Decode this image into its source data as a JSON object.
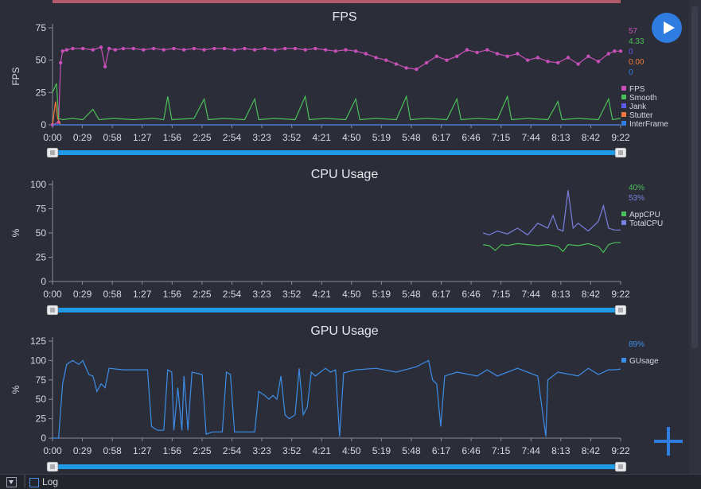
{
  "colors": {
    "background": "#2b2e38",
    "axis": "#8a8f9c",
    "text": "#d6d8de",
    "slider_track": "#1f9be6",
    "slider_handle": "#e9eaee"
  },
  "play_icon": "play-icon",
  "plus_icon": "plus-icon",
  "bottom": {
    "log_label": "Log",
    "toggle_icon": "chevron-down-icon"
  },
  "chart_data": [
    {
      "type": "line",
      "title": "FPS",
      "ylabel": "FPS",
      "ylim": [
        0,
        75
      ],
      "yticks": [
        0,
        25,
        50,
        75
      ],
      "xlim": [
        0,
        562
      ],
      "xticks": [
        "0:00",
        "0:29",
        "0:58",
        "1:27",
        "1:56",
        "2:25",
        "2:54",
        "3:23",
        "3:52",
        "4:21",
        "4:50",
        "5:19",
        "5:48",
        "6:17",
        "6:46",
        "7:15",
        "7:44",
        "8:13",
        "8:42",
        "9:22"
      ],
      "legend_position": "right",
      "current_values": [
        "57",
        "4.33",
        "0",
        "0.00",
        "0"
      ],
      "series": [
        {
          "name": "FPS",
          "color": "#c74fb8",
          "markers": true,
          "points": [
            [
              0,
              0
            ],
            [
              6,
              2
            ],
            [
              8,
              48
            ],
            [
              10,
              57
            ],
            [
              14,
              58
            ],
            [
              20,
              59
            ],
            [
              30,
              59
            ],
            [
              40,
              58
            ],
            [
              48,
              60
            ],
            [
              52,
              45
            ],
            [
              56,
              59
            ],
            [
              62,
              58
            ],
            [
              70,
              59
            ],
            [
              80,
              59
            ],
            [
              90,
              58
            ],
            [
              100,
              59
            ],
            [
              110,
              58
            ],
            [
              120,
              59
            ],
            [
              130,
              58
            ],
            [
              140,
              59
            ],
            [
              150,
              58
            ],
            [
              160,
              59
            ],
            [
              170,
              59
            ],
            [
              180,
              58
            ],
            [
              190,
              59
            ],
            [
              200,
              58
            ],
            [
              210,
              59
            ],
            [
              220,
              58
            ],
            [
              230,
              59
            ],
            [
              240,
              59
            ],
            [
              250,
              58
            ],
            [
              260,
              59
            ],
            [
              270,
              58
            ],
            [
              280,
              57
            ],
            [
              290,
              58
            ],
            [
              300,
              57
            ],
            [
              310,
              55
            ],
            [
              320,
              52
            ],
            [
              330,
              50
            ],
            [
              340,
              47
            ],
            [
              350,
              44
            ],
            [
              360,
              43
            ],
            [
              370,
              48
            ],
            [
              380,
              53
            ],
            [
              390,
              50
            ],
            [
              400,
              53
            ],
            [
              410,
              58
            ],
            [
              420,
              56
            ],
            [
              430,
              58
            ],
            [
              440,
              55
            ],
            [
              450,
              53
            ],
            [
              460,
              55
            ],
            [
              470,
              50
            ],
            [
              480,
              52
            ],
            [
              490,
              49
            ],
            [
              500,
              48
            ],
            [
              510,
              52
            ],
            [
              520,
              47
            ],
            [
              530,
              53
            ],
            [
              540,
              49
            ],
            [
              550,
              55
            ],
            [
              556,
              57
            ],
            [
              562,
              57
            ]
          ]
        },
        {
          "name": "Smooth",
          "color": "#4bbf5a",
          "markers": false,
          "points": [
            [
              0,
              25
            ],
            [
              4,
              32
            ],
            [
              6,
              5
            ],
            [
              10,
              4
            ],
            [
              20,
              5
            ],
            [
              30,
              4
            ],
            [
              40,
              12
            ],
            [
              46,
              4
            ],
            [
              60,
              5
            ],
            [
              80,
              4
            ],
            [
              100,
              5
            ],
            [
              110,
              4
            ],
            [
              114,
              22
            ],
            [
              118,
              4
            ],
            [
              140,
              5
            ],
            [
              150,
              20
            ],
            [
              154,
              4
            ],
            [
              170,
              5
            ],
            [
              190,
              4
            ],
            [
              200,
              20
            ],
            [
              204,
              4
            ],
            [
              220,
              5
            ],
            [
              240,
              4
            ],
            [
              250,
              22
            ],
            [
              254,
              4
            ],
            [
              270,
              5
            ],
            [
              290,
              4
            ],
            [
              300,
              20
            ],
            [
              304,
              4
            ],
            [
              320,
              5
            ],
            [
              340,
              4
            ],
            [
              350,
              22
            ],
            [
              354,
              4
            ],
            [
              370,
              5
            ],
            [
              390,
              4
            ],
            [
              400,
              20
            ],
            [
              404,
              4
            ],
            [
              420,
              5
            ],
            [
              440,
              4
            ],
            [
              450,
              22
            ],
            [
              454,
              4
            ],
            [
              470,
              5
            ],
            [
              490,
              4
            ],
            [
              500,
              18
            ],
            [
              504,
              4
            ],
            [
              520,
              5
            ],
            [
              540,
              4
            ],
            [
              550,
              20
            ],
            [
              554,
              4
            ],
            [
              562,
              5
            ]
          ]
        },
        {
          "name": "Jank",
          "color": "#5a5ae6",
          "markers": false,
          "points": [
            [
              0,
              0
            ],
            [
              562,
              0
            ]
          ]
        },
        {
          "name": "Stutter",
          "color": "#f07a3c",
          "markers": false,
          "points": [
            [
              0,
              0
            ],
            [
              3,
              18
            ],
            [
              5,
              5
            ],
            [
              8,
              0
            ],
            [
              562,
              0
            ]
          ]
        },
        {
          "name": "InterFrame",
          "color": "#2f7de1",
          "markers": false,
          "points": [
            [
              0,
              0
            ],
            [
              562,
              0
            ]
          ]
        }
      ]
    },
    {
      "type": "line",
      "title": "CPU Usage",
      "ylabel": "%",
      "ylim": [
        0,
        100
      ],
      "yticks": [
        0,
        25,
        50,
        75,
        100
      ],
      "xlim": [
        0,
        562
      ],
      "xticks": [
        "0:00",
        "0:29",
        "0:58",
        "1:27",
        "1:56",
        "2:25",
        "2:54",
        "3:23",
        "3:52",
        "4:21",
        "4:50",
        "5:19",
        "5:48",
        "6:17",
        "6:46",
        "7:15",
        "7:44",
        "8:13",
        "8:42",
        "9:22"
      ],
      "legend_position": "right",
      "current_values": [
        "40%",
        "53%"
      ],
      "series": [
        {
          "name": "AppCPU",
          "color": "#4bbf5a",
          "points": [
            [
              426,
              38
            ],
            [
              432,
              37
            ],
            [
              438,
              32
            ],
            [
              444,
              38
            ],
            [
              450,
              37
            ],
            [
              460,
              39
            ],
            [
              470,
              38
            ],
            [
              480,
              37
            ],
            [
              490,
              38
            ],
            [
              500,
              36
            ],
            [
              505,
              31
            ],
            [
              510,
              38
            ],
            [
              520,
              37
            ],
            [
              530,
              39
            ],
            [
              540,
              36
            ],
            [
              545,
              30
            ],
            [
              550,
              38
            ],
            [
              556,
              40
            ],
            [
              562,
              40
            ]
          ]
        },
        {
          "name": "TotalCPU",
          "color": "#7b7fe0",
          "points": [
            [
              426,
              50
            ],
            [
              432,
              48
            ],
            [
              440,
              52
            ],
            [
              450,
              49
            ],
            [
              460,
              55
            ],
            [
              470,
              48
            ],
            [
              480,
              60
            ],
            [
              490,
              55
            ],
            [
              495,
              68
            ],
            [
              500,
              54
            ],
            [
              505,
              52
            ],
            [
              510,
              94
            ],
            [
              515,
              55
            ],
            [
              520,
              60
            ],
            [
              530,
              52
            ],
            [
              540,
              62
            ],
            [
              545,
              78
            ],
            [
              550,
              55
            ],
            [
              556,
              53
            ],
            [
              562,
              53
            ]
          ]
        }
      ]
    },
    {
      "type": "line",
      "title": "GPU Usage",
      "ylabel": "%",
      "ylim": [
        0,
        125
      ],
      "yticks": [
        0,
        25,
        50,
        75,
        100,
        125
      ],
      "xlim": [
        0,
        562
      ],
      "xticks": [
        "0:00",
        "0:29",
        "0:58",
        "1:27",
        "1:56",
        "2:25",
        "2:54",
        "3:23",
        "3:52",
        "4:21",
        "4:50",
        "5:19",
        "5:48",
        "6:17",
        "6:46",
        "7:15",
        "7:44",
        "8:13",
        "8:42",
        "9:22"
      ],
      "legend_position": "right",
      "current_values": [
        "89%"
      ],
      "series": [
        {
          "name": "GUsage",
          "color": "#3d8de8",
          "points": [
            [
              0,
              0
            ],
            [
              6,
              0
            ],
            [
              10,
              70
            ],
            [
              14,
              95
            ],
            [
              20,
              100
            ],
            [
              26,
              95
            ],
            [
              30,
              100
            ],
            [
              36,
              82
            ],
            [
              40,
              80
            ],
            [
              44,
              60
            ],
            [
              48,
              70
            ],
            [
              52,
              65
            ],
            [
              56,
              90
            ],
            [
              70,
              88
            ],
            [
              90,
              88
            ],
            [
              94,
              88
            ],
            [
              98,
              15
            ],
            [
              104,
              10
            ],
            [
              110,
              10
            ],
            [
              114,
              88
            ],
            [
              118,
              85
            ],
            [
              120,
              10
            ],
            [
              124,
              65
            ],
            [
              128,
              10
            ],
            [
              130,
              80
            ],
            [
              134,
              10
            ],
            [
              138,
              85
            ],
            [
              148,
              82
            ],
            [
              152,
              5
            ],
            [
              158,
              8
            ],
            [
              168,
              8
            ],
            [
              172,
              85
            ],
            [
              176,
              82
            ],
            [
              180,
              8
            ],
            [
              186,
              8
            ],
            [
              200,
              8
            ],
            [
              204,
              60
            ],
            [
              210,
              55
            ],
            [
              214,
              50
            ],
            [
              218,
              55
            ],
            [
              222,
              50
            ],
            [
              226,
              80
            ],
            [
              230,
              30
            ],
            [
              234,
              25
            ],
            [
              240,
              30
            ],
            [
              244,
              90
            ],
            [
              248,
              30
            ],
            [
              252,
              40
            ],
            [
              256,
              85
            ],
            [
              260,
              80
            ],
            [
              270,
              90
            ],
            [
              275,
              85
            ],
            [
              280,
              88
            ],
            [
              284,
              2
            ],
            [
              288,
              84
            ],
            [
              300,
              88
            ],
            [
              320,
              90
            ],
            [
              340,
              85
            ],
            [
              360,
              92
            ],
            [
              372,
              100
            ],
            [
              376,
              75
            ],
            [
              380,
              70
            ],
            [
              384,
              15
            ],
            [
              388,
              80
            ],
            [
              400,
              85
            ],
            [
              420,
              80
            ],
            [
              430,
              88
            ],
            [
              440,
              80
            ],
            [
              460,
              90
            ],
            [
              480,
              80
            ],
            [
              488,
              2
            ],
            [
              490,
              75
            ],
            [
              500,
              85
            ],
            [
              520,
              80
            ],
            [
              530,
              90
            ],
            [
              540,
              82
            ],
            [
              550,
              88
            ],
            [
              556,
              88
            ],
            [
              562,
              89
            ]
          ]
        }
      ]
    }
  ]
}
